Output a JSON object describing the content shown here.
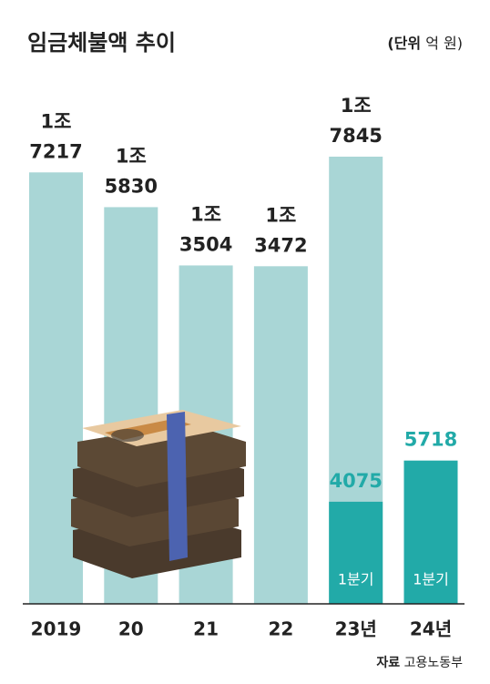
{
  "chart_data": {
    "type": "bar",
    "title": "임금체불액 추이",
    "unit_label": "(단위",
    "unit": "억 원)",
    "categories": [
      "2019",
      "20",
      "21",
      "22",
      "23년",
      "24년"
    ],
    "series": [
      {
        "color": "#a9d6d6",
        "label_color": "#222222",
        "values": [
          17217,
          15830,
          13504,
          13472,
          17845,
          null
        ],
        "value_labels": [
          "1조 7217",
          "1조 5830",
          "1조 3504",
          "1조 3472",
          "1조 7845",
          null
        ]
      },
      {
        "name": "1분기",
        "color": "#22aaa8",
        "label_color": "#22aaa8",
        "values": [
          null,
          null,
          null,
          null,
          4075,
          5718
        ]
      }
    ],
    "source_label": "자료",
    "source": "고용노동부"
  }
}
